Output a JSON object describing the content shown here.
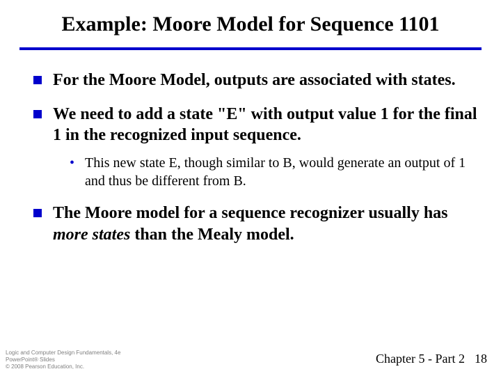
{
  "title": "Example: Moore Model for Sequence 1101",
  "rule_color": "#0000cc",
  "bullets": {
    "b1": "For the Moore Model, outputs are associated with states.",
    "b2": "We need to add a state \"E\" with output value 1 for the final 1 in the recognized input sequence.",
    "b2_sub": "This new state E, though similar to B, would generate an output of 1 and thus be different from B.",
    "b3_pre": "The Moore model for a sequence recognizer usually has ",
    "b3_em": "more states",
    "b3_post": " than the Mealy model."
  },
  "footer": {
    "book": "Logic and Computer Design Fundamentals, 4e",
    "slides": "PowerPoint® Slides",
    "copyright": "© 2008 Pearson Education, Inc.",
    "chapter": "Chapter 5 - Part 2",
    "page": "18"
  },
  "styling": {
    "title_fontsize": 30,
    "level1_fontsize": 24,
    "level2_fontsize": 20,
    "bullet_color": "#0000cc",
    "text_color": "#000000",
    "background_color": "#ffffff",
    "footer_color": "#808080"
  }
}
